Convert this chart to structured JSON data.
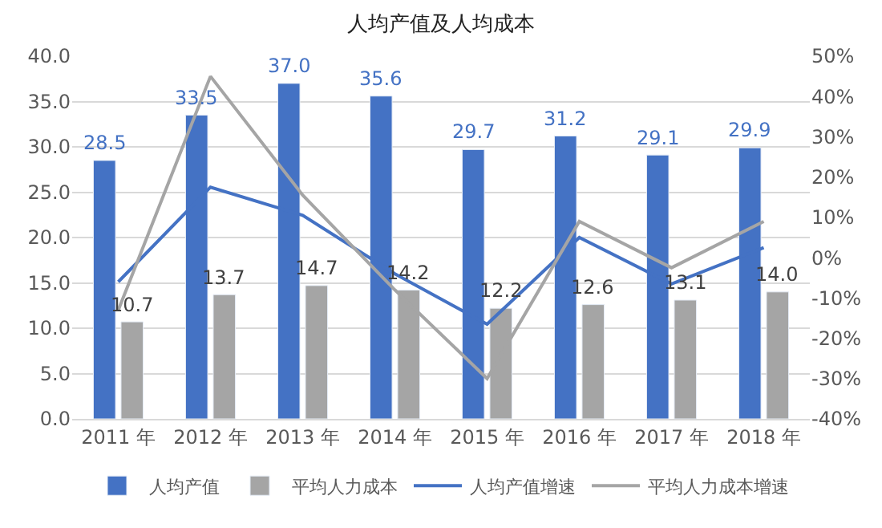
{
  "chart_data": {
    "type": "bar",
    "title": "人均产值及人均成本",
    "categories": [
      "2011 年",
      "2012 年",
      "2013 年",
      "2014 年",
      "2015 年",
      "2016 年",
      "2017 年",
      "2018 年"
    ],
    "series": [
      {
        "name": "人均产值",
        "color": "#4472c4",
        "values": [
          28.5,
          33.5,
          37.0,
          35.6,
          29.7,
          31.2,
          29.1,
          29.9
        ],
        "value_labels": [
          "28.5",
          "33.5",
          "37.0",
          "35.6",
          "29.7",
          "31.2",
          "29.1",
          "29.9"
        ]
      },
      {
        "name": "平均人力成本",
        "color": "#a5a5a5",
        "values": [
          10.7,
          13.7,
          14.7,
          14.2,
          12.2,
          12.6,
          13.1,
          14.0
        ],
        "value_labels": [
          "10.7",
          "13.7",
          "14.7",
          "14.2",
          "12.2",
          "12.6",
          "13.1",
          "14.0"
        ]
      },
      {
        "name": "人均产值增速",
        "type": "line",
        "axis": "y2",
        "color": "#4472c4",
        "values": [
          -6,
          17.5,
          10.5,
          -4,
          -16.5,
          5,
          -6.5,
          2.5
        ]
      },
      {
        "name": "平均人力成本增速",
        "type": "line",
        "axis": "y2",
        "color": "#a5a5a5",
        "values": [
          -13,
          45,
          15.5,
          -8,
          -30,
          9,
          -2.5,
          9
        ]
      }
    ],
    "ylim": [
      0,
      40
    ],
    "yticks": [
      {
        "value": 0,
        "label": "0.0"
      },
      {
        "value": 5,
        "label": "5.0"
      },
      {
        "value": 10,
        "label": "10.0"
      },
      {
        "value": 15,
        "label": "15.0"
      },
      {
        "value": 20,
        "label": "20.0"
      },
      {
        "value": 25,
        "label": "25.0"
      },
      {
        "value": 30,
        "label": "30.0"
      },
      {
        "value": 35,
        "label": "35.0"
      },
      {
        "value": 40,
        "label": "40.0"
      }
    ],
    "y2lim": [
      -40,
      50
    ],
    "y2ticks": [
      {
        "value": -40,
        "label": "-40%"
      },
      {
        "value": -30,
        "label": "-30%"
      },
      {
        "value": -20,
        "label": "-20%"
      },
      {
        "value": -10,
        "label": "-10%"
      },
      {
        "value": 0,
        "label": "0%"
      },
      {
        "value": 10,
        "label": "10%"
      },
      {
        "value": 20,
        "label": "20%"
      },
      {
        "value": 30,
        "label": "30%"
      },
      {
        "value": 40,
        "label": "40%"
      },
      {
        "value": 50,
        "label": "50%"
      }
    ],
    "grid": "y",
    "legend": "bottom"
  }
}
